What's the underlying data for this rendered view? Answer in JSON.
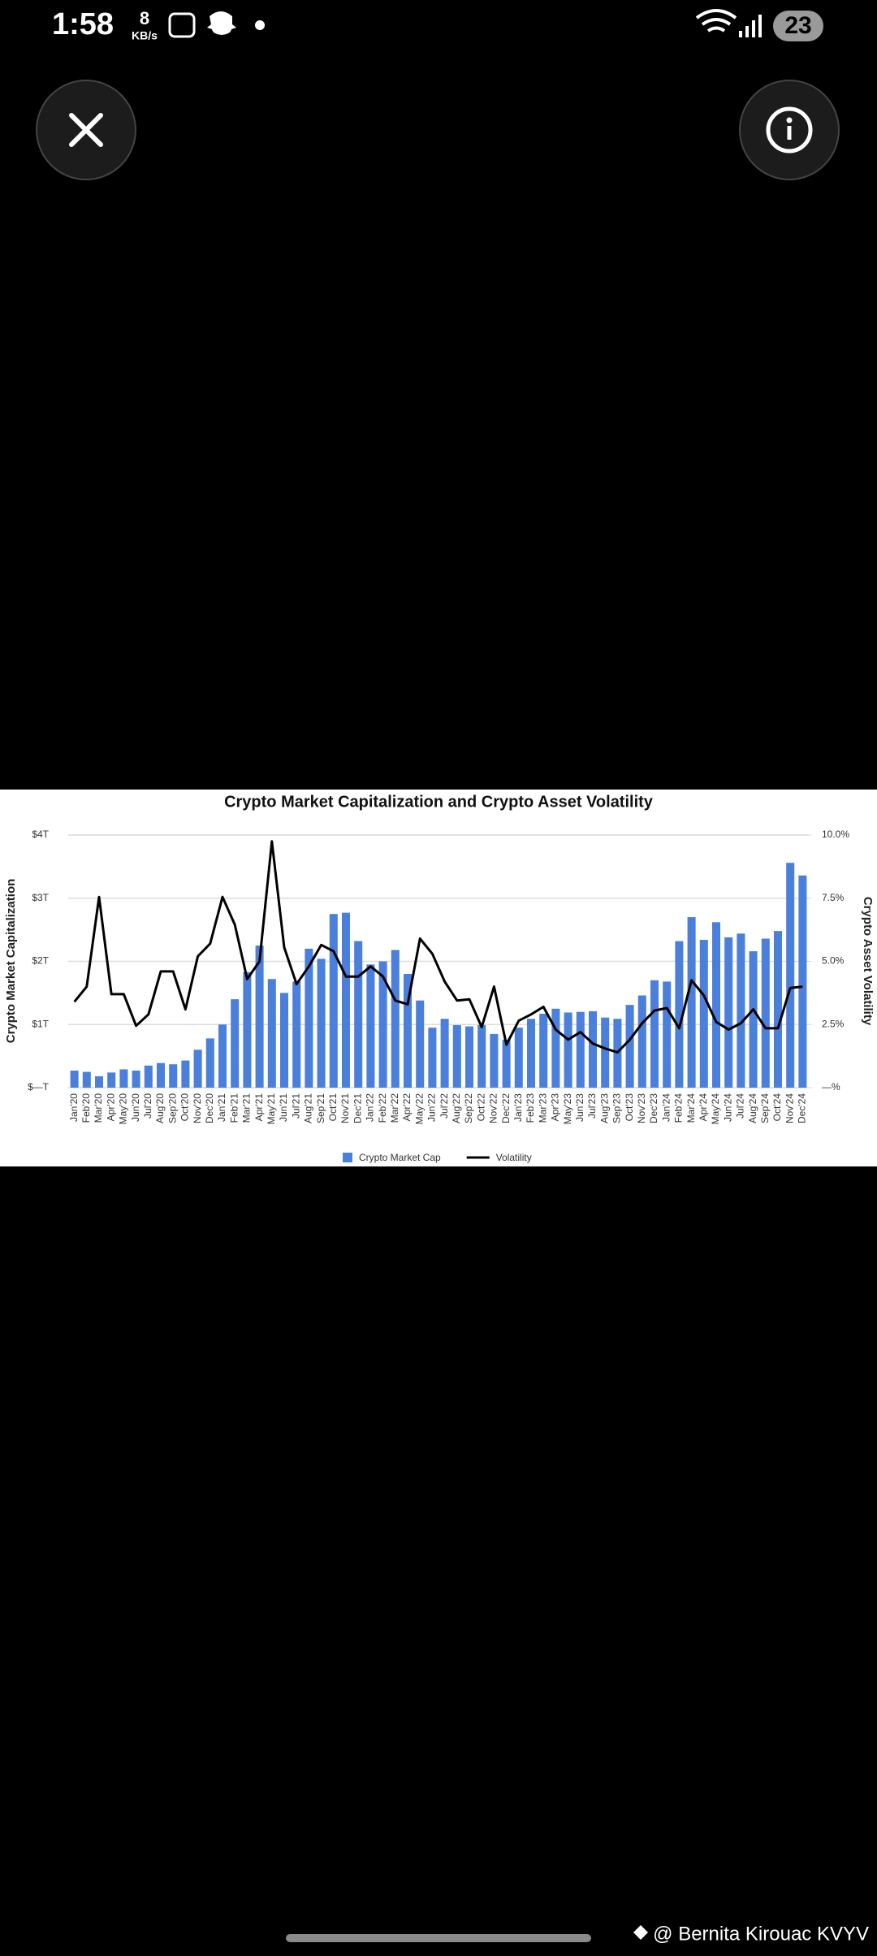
{
  "status_bar": {
    "time": "1:58",
    "net_speed": "8",
    "net_unit": "KB/s",
    "battery": "23"
  },
  "watermark": "@ Bernita Kirouac KVYV",
  "chart_data": {
    "type": "bar",
    "title": "Crypto Market Capitalization and Crypto Asset Volatility",
    "ylabel": "Crypto Market Capitalization",
    "y2label": "Crypto Asset Volatility",
    "categories": [
      "Jan'20",
      "Feb'20",
      "Mar'20",
      "Apr'20",
      "May'20",
      "Jun'20",
      "Jul'20",
      "Aug'20",
      "Sep'20",
      "Oct'20",
      "Nov'20",
      "Dec'20",
      "Jan'21",
      "Feb'21",
      "Mar'21",
      "Apr'21",
      "May'21",
      "Jun'21",
      "Jul'21",
      "Aug'21",
      "Sep'21",
      "Oct'21",
      "Nov'21",
      "Dec'21",
      "Jan'22",
      "Feb'22",
      "Mar'22",
      "Apr'22",
      "May'22",
      "Jun'22",
      "Jul'22",
      "Aug'22",
      "Sep'22",
      "Oct'22",
      "Nov'22",
      "Dec'22",
      "Jan'23",
      "Feb'23",
      "Mar'23",
      "Apr'23",
      "May'23",
      "Jun'23",
      "Jul'23",
      "Aug'23",
      "Sep'23",
      "Oct'23",
      "Nov'23",
      "Dec'23",
      "Jan'24",
      "Feb'24",
      "Mar'24",
      "Apr'24",
      "May'24",
      "Jun'24",
      "Jul'24",
      "Aug'24",
      "Sep'24",
      "Oct'24",
      "Nov'24",
      "Dec'24"
    ],
    "series": [
      {
        "name": "Crypto Market Cap",
        "type": "bar",
        "color": "#4a7fdb",
        "values": [
          0.27,
          0.25,
          0.18,
          0.24,
          0.29,
          0.27,
          0.35,
          0.39,
          0.37,
          0.43,
          0.6,
          0.78,
          1.0,
          1.4,
          1.83,
          2.25,
          1.72,
          1.5,
          1.68,
          2.2,
          2.04,
          2.75,
          2.77,
          2.32,
          1.95,
          2.0,
          2.18,
          1.8,
          1.38,
          0.95,
          1.09,
          0.99,
          0.97,
          0.99,
          0.85,
          0.76,
          0.95,
          1.09,
          1.17,
          1.25,
          1.19,
          1.2,
          1.21,
          1.11,
          1.09,
          1.31,
          1.46,
          1.7,
          1.68,
          2.32,
          2.7,
          2.34,
          2.62,
          2.38,
          2.44,
          2.16,
          2.36,
          2.48,
          3.56,
          3.36
        ]
      },
      {
        "name": "Volatility",
        "type": "line",
        "color": "#000000",
        "axis": "y2",
        "values": [
          3.4,
          4.0,
          7.55,
          3.7,
          3.7,
          2.45,
          2.9,
          4.6,
          4.6,
          3.1,
          5.2,
          5.7,
          7.55,
          6.45,
          4.3,
          5.0,
          9.75,
          5.55,
          4.1,
          4.8,
          5.65,
          5.4,
          4.4,
          4.4,
          4.8,
          4.4,
          3.45,
          3.3,
          5.9,
          5.3,
          4.2,
          3.45,
          3.5,
          2.4,
          4.0,
          1.7,
          2.65,
          2.9,
          3.2,
          2.3,
          1.9,
          2.2,
          1.75,
          1.55,
          1.4,
          1.9,
          2.55,
          3.05,
          3.15,
          2.35,
          4.25,
          3.65,
          2.6,
          2.3,
          2.55,
          3.1,
          2.35,
          2.35,
          3.95,
          4.0
        ]
      }
    ],
    "ylim": [
      0,
      4
    ],
    "yticks": [
      {
        "value": 0,
        "label": "$—T"
      },
      {
        "value": 1,
        "label": "$1T"
      },
      {
        "value": 2,
        "label": "$2T"
      },
      {
        "value": 3,
        "label": "$3T"
      },
      {
        "value": 4,
        "label": "$4T"
      }
    ],
    "y2lim": [
      0,
      10
    ],
    "y2ticks": [
      {
        "value": 0,
        "label": "—%"
      },
      {
        "value": 2.5,
        "label": "2.5%"
      },
      {
        "value": 5,
        "label": "5.0%"
      },
      {
        "value": 7.5,
        "label": "7.5%"
      },
      {
        "value": 10,
        "label": "10.0%"
      }
    ],
    "grid": true,
    "legend": "bottom"
  }
}
